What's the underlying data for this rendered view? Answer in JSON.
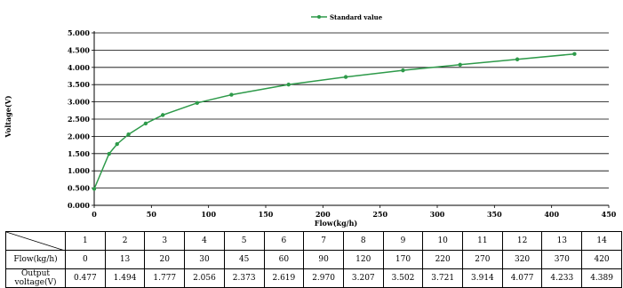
{
  "chart_data": {
    "type": "line",
    "legend": "Standard value",
    "legend_position": "top-center",
    "xlabel": "Flow(kg/h)",
    "ylabel": "Voltage(V)",
    "xlim": [
      0,
      450
    ],
    "ylim": [
      0,
      5
    ],
    "x_ticks": [
      "0",
      "50",
      "100",
      "150",
      "200",
      "250",
      "300",
      "350",
      "400",
      "450"
    ],
    "y_ticks": [
      "0.000",
      "0.500",
      "1.000",
      "1.500",
      "2.000",
      "2.500",
      "3.000",
      "3.500",
      "4.000",
      "4.500",
      "5.000"
    ],
    "grid": "horizontal",
    "series": [
      {
        "name": "Standard value",
        "color": "#2e9a4a",
        "x": [
          0,
          13,
          20,
          30,
          45,
          60,
          90,
          120,
          170,
          220,
          270,
          320,
          370,
          420
        ],
        "y": [
          0.477,
          1.494,
          1.777,
          2.056,
          2.373,
          2.619,
          2.97,
          3.207,
          3.502,
          3.721,
          3.914,
          4.077,
          4.233,
          4.389
        ]
      }
    ]
  },
  "table": {
    "header_row": [
      "1",
      "2",
      "3",
      "4",
      "5",
      "6",
      "7",
      "8",
      "9",
      "10",
      "11",
      "12",
      "13",
      "14"
    ],
    "rows": [
      {
        "label": "Flow(kg/h)",
        "values": [
          "0",
          "13",
          "20",
          "30",
          "45",
          "60",
          "90",
          "120",
          "170",
          "220",
          "270",
          "320",
          "370",
          "420"
        ]
      },
      {
        "label": "Output voltage(V)",
        "values": [
          "0.477",
          "1.494",
          "1.777",
          "2.056",
          "2.373",
          "2.619",
          "2.970",
          "3.207",
          "3.502",
          "3.721",
          "3.914",
          "4.077",
          "4.233",
          "4.389"
        ]
      }
    ]
  }
}
